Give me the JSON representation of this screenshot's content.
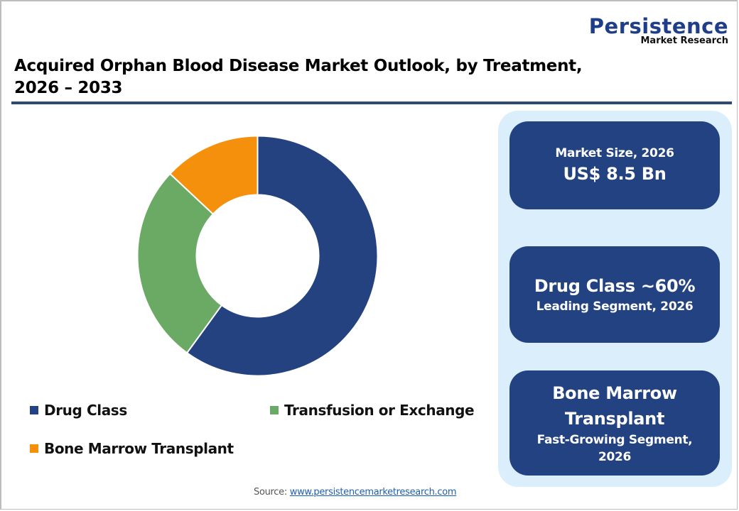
{
  "logo": {
    "main": "Persistence",
    "sub": "Market Research"
  },
  "header": {
    "title_line1": "Acquired Orphan Blood Disease Market Outlook, by Treatment,",
    "title_line2": "2026 – 2033"
  },
  "colors": {
    "drug_class": "#23427f",
    "transfusion": "#6aaa64",
    "bone_marrow": "#f5900c",
    "title_rule": "#2e4a74",
    "panel_bg": "#daeefb",
    "card_bg": "#234281"
  },
  "legend": [
    {
      "label": "Drug Class",
      "color": "#23427f"
    },
    {
      "label": "Transfusion or Exchange",
      "color": "#6aaa64"
    },
    {
      "label": "Bone Marrow Transplant",
      "color": "#f5900c"
    }
  ],
  "cards": [
    {
      "line1": "Market Size, 2026",
      "line2": "US$ 8.5 Bn"
    },
    {
      "line1": "Drug Class ~60%",
      "line2": "Leading Segment, 2026"
    },
    {
      "line1": "Bone Marrow",
      "line2": "Transplant",
      "line3": "Fast-Growing Segment,",
      "line4": "2026"
    }
  ],
  "source": {
    "label": "Source: ",
    "link": "www.persistencemarketresearch.com"
  },
  "chart_data": {
    "type": "pie",
    "variant": "donut",
    "title": "Acquired Orphan Blood Disease Market Outlook, by Treatment, 2026 – 2033",
    "categories": [
      "Drug Class",
      "Transfusion or Exchange",
      "Bone Marrow Transplant"
    ],
    "values": [
      60,
      27,
      13
    ],
    "unit": "%",
    "colors": [
      "#23427f",
      "#6aaa64",
      "#f5900c"
    ],
    "start_angle_deg": 0,
    "direction": "clockwise",
    "legend_position": "bottom",
    "annotations": [
      "Market Size, 2026: US$ 8.5 Bn",
      "Drug Class ~60% Leading Segment, 2026",
      "Bone Marrow Transplant Fast-Growing Segment, 2026"
    ]
  }
}
